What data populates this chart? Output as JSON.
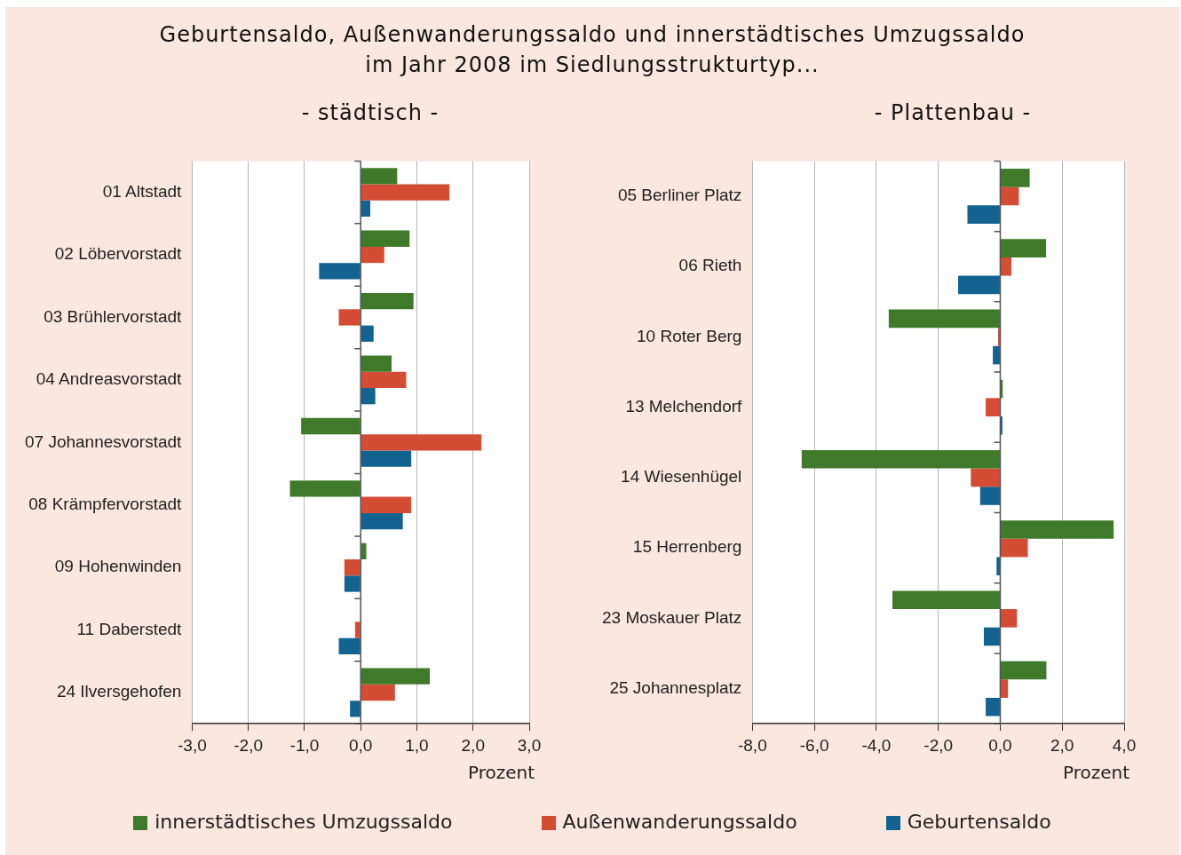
{
  "chart_data": [
    {
      "type": "bar",
      "orientation": "horizontal",
      "title": "Geburtensaldo, Außenwanderungssaldo und innerstädtisches Umzugssaldo\nim Jahr 2008 im Siedlungsstrukturtyp...",
      "subtitle": "- städtisch -",
      "xlabel": "Prozent",
      "categories": [
        "01 Altstadt",
        "02 Löbervorstadt",
        "03 Brühlervorstadt",
        "04 Andreasvorstadt",
        "07 Johannesvorstadt",
        "08 Krämpfervorstadt",
        "09 Hohenwinden",
        "11 Daberstedt",
        "24 Ilversgehofen"
      ],
      "series": [
        {
          "name": "innerstädtisches Umzugssaldo",
          "color": "#3f7a2a",
          "values": [
            0.65,
            0.87,
            0.94,
            0.55,
            -1.06,
            -1.26,
            0.1,
            0,
            1.23
          ]
        },
        {
          "name": "Außenwanderungssaldo",
          "color": "#d44c33",
          "values": [
            1.58,
            0.42,
            -0.39,
            0.81,
            2.15,
            0.9,
            -0.29,
            -0.1,
            0.61
          ]
        },
        {
          "name": "Geburtensaldo",
          "color": "#136391",
          "values": [
            0.17,
            -0.74,
            0.23,
            0.26,
            0.9,
            0.75,
            -0.29,
            -0.39,
            -0.19
          ]
        }
      ],
      "xlim": [
        -3,
        3
      ],
      "xticks": [
        {
          "value": -3,
          "label": "-3,0"
        },
        {
          "value": -2,
          "label": "-2,0"
        },
        {
          "value": -1,
          "label": "-1,0"
        },
        {
          "value": 0,
          "label": "0,0"
        },
        {
          "value": 1,
          "label": "1,0"
        },
        {
          "value": 2,
          "label": "2,0"
        },
        {
          "value": 3,
          "label": "3,0"
        }
      ],
      "grid": "x",
      "legend": "bottom"
    },
    {
      "type": "bar",
      "orientation": "horizontal",
      "subtitle": "- Plattenbau -",
      "xlabel": "Prozent",
      "categories": [
        "05 Berliner Platz",
        "06 Rieth",
        "10 Roter Berg",
        "13 Melchendorf",
        "14 Wiesenhügel",
        "15 Herrenberg",
        "23 Moskauer Platz",
        "25 Johannesplatz"
      ],
      "series": [
        {
          "color": "#3f7a2a",
          "values": [
            0.95,
            1.48,
            -3.6,
            0.08,
            -6.41,
            3.66,
            -3.48,
            1.49
          ]
        },
        {
          "color": "#d44c33",
          "values": [
            0.6,
            0.36,
            -0.07,
            -0.47,
            -0.95,
            0.89,
            0.54,
            0.25
          ]
        },
        {
          "color": "#136391",
          "values": [
            -1.06,
            -1.36,
            -0.24,
            0.07,
            -0.65,
            -0.12,
            -0.53,
            -0.47
          ]
        }
      ],
      "xlim": [
        -8,
        4
      ],
      "xticks": [
        {
          "value": -8,
          "label": "-8,0"
        },
        {
          "value": -6,
          "label": "-6,0"
        },
        {
          "value": -4,
          "label": "-4,0"
        },
        {
          "value": -2,
          "label": "-2,0"
        },
        {
          "value": 0,
          "label": "0,0"
        },
        {
          "value": 2,
          "label": "2,0"
        },
        {
          "value": 4,
          "label": "4,0"
        }
      ],
      "grid": "x"
    }
  ]
}
